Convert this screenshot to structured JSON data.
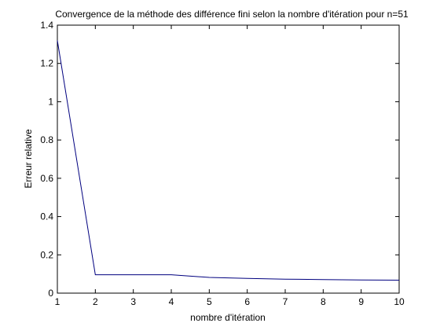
{
  "chart_data": {
    "type": "line",
    "title": "Convergence de la méthode des différence fini selon la nombre d'itération pour n=51",
    "xlabel": "nombre d'itération",
    "ylabel": "Erreur relative",
    "xlim": [
      1,
      10
    ],
    "ylim": [
      0,
      1.4
    ],
    "xticks": [
      "1",
      "2",
      "3",
      "4",
      "5",
      "6",
      "7",
      "8",
      "9",
      "10"
    ],
    "yticks": [
      "0",
      "0.2",
      "0.4",
      "0.6",
      "0.8",
      "1",
      "1.2",
      "1.4"
    ],
    "grid": false,
    "series": [
      {
        "color": "#00007f",
        "x": [
          1,
          2,
          3,
          4,
          5,
          6,
          7,
          8,
          9,
          10
        ],
        "y": [
          1.32,
          0.096,
          0.096,
          0.096,
          0.082,
          0.077,
          0.073,
          0.071,
          0.069,
          0.068
        ]
      }
    ]
  }
}
